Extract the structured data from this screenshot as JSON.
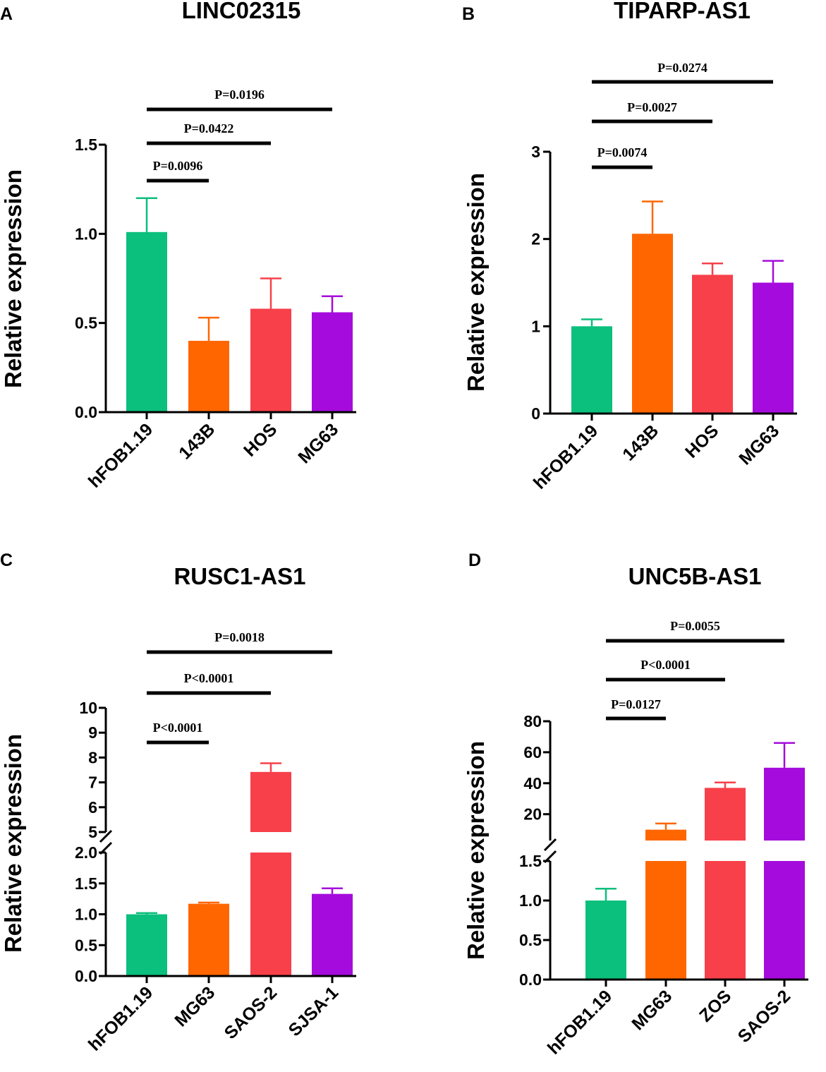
{
  "chart_data": [
    {
      "panel": "A",
      "type": "bar",
      "title": "LINC02315",
      "ylabel": "Relative expression",
      "xlabel": "",
      "categories": [
        "hFOB1.19",
        "143B",
        "HOS",
        "MG63"
      ],
      "values": [
        1.01,
        0.4,
        0.58,
        0.56
      ],
      "errors": [
        0.19,
        0.13,
        0.17,
        0.09
      ],
      "colors": [
        "#0bbf7c",
        "#ff6600",
        "#f7404a",
        "#a50bdc"
      ],
      "ylim": [
        0,
        1.5
      ],
      "yticks": [
        0,
        0.5,
        1.0,
        1.5
      ],
      "ytick_labels": [
        "0.0",
        "0.5",
        "1.0",
        "1.5"
      ],
      "comparisons": [
        {
          "from": 0,
          "to": 1,
          "label": "P=0.0096"
        },
        {
          "from": 0,
          "to": 2,
          "label": "P=0.0422"
        },
        {
          "from": 0,
          "to": 3,
          "label": "P=0.0196"
        }
      ]
    },
    {
      "panel": "B",
      "type": "bar",
      "title": "TIPARP-AS1",
      "ylabel": "Relative expression",
      "xlabel": "",
      "categories": [
        "hFOB1.19",
        "143B",
        "HOS",
        "MG63"
      ],
      "values": [
        1.0,
        2.06,
        1.59,
        1.5
      ],
      "errors": [
        0.08,
        0.37,
        0.13,
        0.25
      ],
      "colors": [
        "#0bbf7c",
        "#ff6600",
        "#f7404a",
        "#a50bdc"
      ],
      "ylim": [
        0,
        3
      ],
      "yticks": [
        0,
        1,
        2,
        3
      ],
      "ytick_labels": [
        "0",
        "1",
        "2",
        "3"
      ],
      "comparisons": [
        {
          "from": 0,
          "to": 1,
          "label": "P=0.0074"
        },
        {
          "from": 0,
          "to": 2,
          "label": "P=0.0027"
        },
        {
          "from": 0,
          "to": 3,
          "label": "P=0.0274"
        }
      ]
    },
    {
      "panel": "C",
      "type": "bar",
      "title": "RUSC1-AS1",
      "ylabel": "Relative expression",
      "xlabel": "",
      "categories": [
        "hFOB1.19",
        "MG63",
        "SAOS-2",
        "SJSA-1"
      ],
      "values": [
        1.0,
        1.17,
        7.42,
        1.33
      ],
      "errors": [
        0.02,
        0.02,
        0.35,
        0.09
      ],
      "colors": [
        "#0bbf7c",
        "#ff6600",
        "#f7404a",
        "#a50bdc"
      ],
      "axis_break": {
        "lower": [
          0,
          2
        ],
        "upper": [
          5,
          10
        ]
      },
      "yticks_lower": [
        0,
        0.5,
        1.0,
        1.5,
        2.0
      ],
      "ytick_labels_lower": [
        "0.0",
        "0.5",
        "1.0",
        "1.5",
        "2.0"
      ],
      "yticks_upper": [
        5,
        6,
        7,
        8,
        9,
        10
      ],
      "ytick_labels_upper": [
        "5",
        "6",
        "7",
        "8",
        "9",
        "10"
      ],
      "comparisons": [
        {
          "from": 0,
          "to": 1,
          "label": "P<0.0001"
        },
        {
          "from": 0,
          "to": 2,
          "label": "P<0.0001"
        },
        {
          "from": 0,
          "to": 3,
          "label": "P=0.0018"
        }
      ]
    },
    {
      "panel": "D",
      "type": "bar",
      "title": "UNC5B-AS1",
      "ylabel": "Relative expression",
      "xlabel": "",
      "categories": [
        "hFOB1.19",
        "MG63",
        "ZOS",
        "SAOS-2"
      ],
      "values": [
        1.0,
        10.0,
        37.0,
        50.0
      ],
      "errors": [
        0.15,
        4.0,
        3.5,
        16.0
      ],
      "colors": [
        "#0bbf7c",
        "#ff6600",
        "#f7404a",
        "#a50bdc"
      ],
      "axis_break": {
        "lower": [
          0,
          1.5
        ],
        "upper": [
          3,
          80
        ]
      },
      "yticks_lower": [
        0,
        0.5,
        1.0,
        1.5
      ],
      "ytick_labels_lower": [
        "0.0",
        "0.5",
        "1.0",
        "1.5"
      ],
      "yticks_upper": [
        20,
        40,
        60,
        80
      ],
      "ytick_labels_upper": [
        "20",
        "40",
        "60",
        "80"
      ],
      "comparisons": [
        {
          "from": 0,
          "to": 1,
          "label": "P=0.0127"
        },
        {
          "from": 0,
          "to": 2,
          "label": "P<0.0001"
        },
        {
          "from": 0,
          "to": 3,
          "label": "P=0.0055"
        }
      ]
    }
  ]
}
